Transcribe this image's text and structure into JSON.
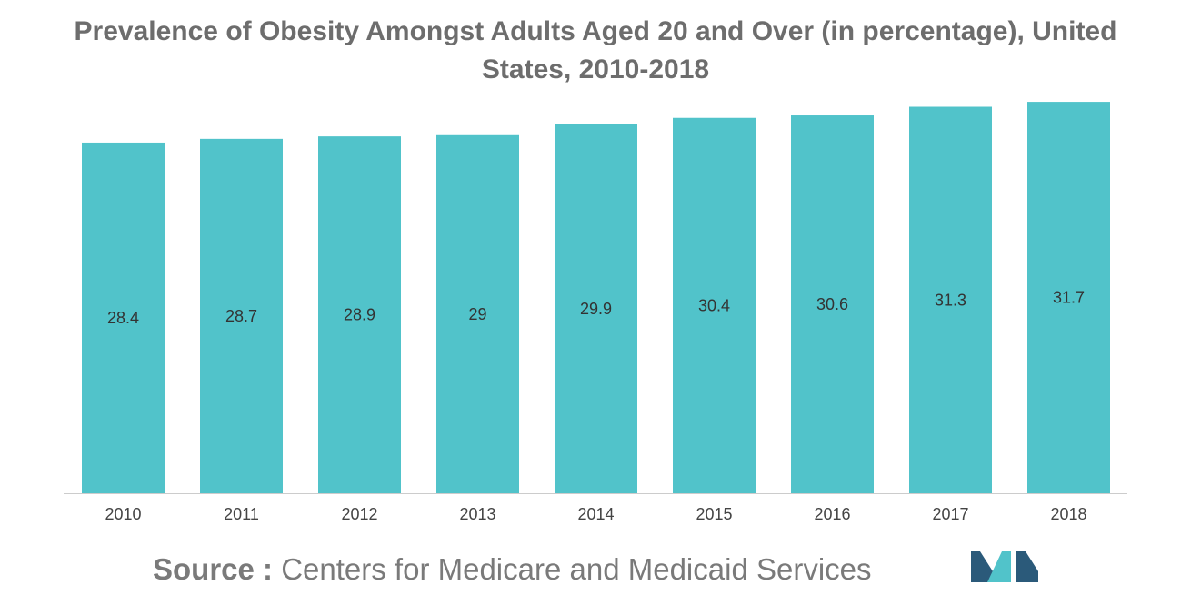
{
  "title_line1": "Prevalence of Obesity Amongst Adults Aged 20 and Over (in percentage), United",
  "title_line2": "States, 2010-2018",
  "source_label": "Source :",
  "source_text": "Centers for Medicare and Medicaid Services",
  "colors": {
    "bar": "#51c3ca",
    "axis": "#cccccc",
    "text": "#333333",
    "logo_dark": "#2b5a7a",
    "logo_light": "#51c3ca"
  },
  "chart_data": {
    "type": "bar",
    "title": "Prevalence of Obesity Amongst Adults Aged 20 and Over (in percentage), United States, 2010-2018",
    "categories": [
      "2010",
      "2011",
      "2012",
      "2013",
      "2014",
      "2015",
      "2016",
      "2017",
      "2018"
    ],
    "values": [
      28.4,
      28.7,
      28.9,
      29,
      29.9,
      30.4,
      30.6,
      31.3,
      31.7
    ],
    "labels": [
      "28.4",
      "28.7",
      "28.9",
      "29",
      "29.9",
      "30.4",
      "30.6",
      "31.3",
      "31.7"
    ],
    "xlabel": "",
    "ylabel": "",
    "ylim": [
      0,
      32
    ],
    "grid": false,
    "legend": "none"
  }
}
